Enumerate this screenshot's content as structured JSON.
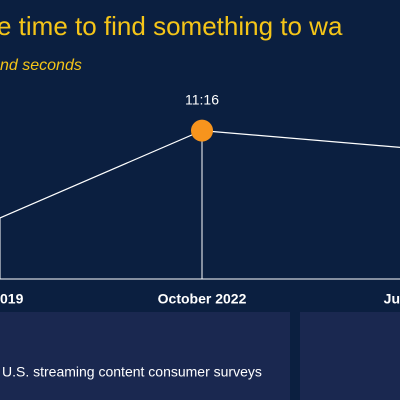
{
  "chart_data": {
    "type": "line",
    "title": "e time to find something to wa",
    "subtitle": "nd seconds",
    "categories": [
      "019",
      "October 2022",
      "Ju"
    ],
    "values": [
      4.64,
      11.27,
      9.97
    ],
    "value_labels": [
      null,
      "11:16",
      null
    ],
    "ylim": [
      0,
      12
    ],
    "color": "#ffffff",
    "marker_color": "#f7941d",
    "title_color": "#f5c518",
    "source": "U.S. streaming content consumer surveys"
  }
}
